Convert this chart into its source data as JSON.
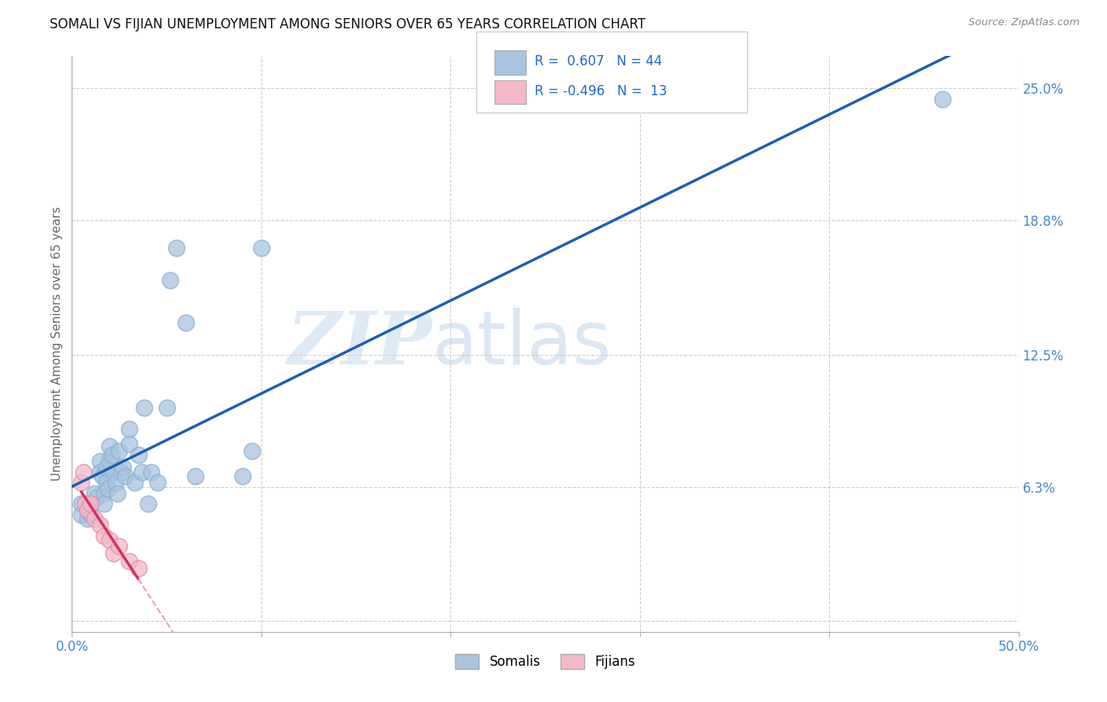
{
  "title": "SOMALI VS FIJIAN UNEMPLOYMENT AMONG SENIORS OVER 65 YEARS CORRELATION CHART",
  "source": "Source: ZipAtlas.com",
  "ylabel": "Unemployment Among Seniors over 65 years",
  "xlim": [
    0.0,
    0.5
  ],
  "ylim": [
    -0.005,
    0.265
  ],
  "xtick_positions": [
    0.0,
    0.1,
    0.2,
    0.3,
    0.4,
    0.5
  ],
  "xticklabels": [
    "0.0%",
    "",
    "",
    "",
    "",
    "50.0%"
  ],
  "ytick_positions": [
    0.0,
    0.063,
    0.125,
    0.188,
    0.25
  ],
  "yticklabels": [
    "",
    "6.3%",
    "12.5%",
    "18.8%",
    "25.0%"
  ],
  "somali_R": 0.607,
  "somali_N": 44,
  "fijian_R": -0.496,
  "fijian_N": 13,
  "somali_color": "#a8c4e0",
  "fijian_color": "#f4b8c8",
  "somali_line_color": "#1a5fb4",
  "fijian_line_solid_color": "#d63060",
  "fijian_line_dashed_color": "#e8a0b0",
  "grid_color": "#cccccc",
  "background_color": "#ffffff",
  "watermark_zip": "ZIP",
  "watermark_atlas": "atlas",
  "somali_x": [
    0.005,
    0.005,
    0.008,
    0.008,
    0.01,
    0.01,
    0.012,
    0.013,
    0.015,
    0.015,
    0.016,
    0.017,
    0.017,
    0.018,
    0.018,
    0.019,
    0.02,
    0.02,
    0.021,
    0.022,
    0.023,
    0.024,
    0.025,
    0.026,
    0.027,
    0.028,
    0.03,
    0.03,
    0.033,
    0.035,
    0.037,
    0.038,
    0.04,
    0.042,
    0.045,
    0.05,
    0.052,
    0.055,
    0.06,
    0.065,
    0.09,
    0.095,
    0.1,
    0.46
  ],
  "somali_y": [
    0.055,
    0.05,
    0.048,
    0.052,
    0.055,
    0.05,
    0.06,
    0.058,
    0.075,
    0.07,
    0.068,
    0.06,
    0.055,
    0.072,
    0.065,
    0.062,
    0.075,
    0.082,
    0.078,
    0.07,
    0.065,
    0.06,
    0.08,
    0.07,
    0.072,
    0.068,
    0.083,
    0.09,
    0.065,
    0.078,
    0.07,
    0.1,
    0.055,
    0.07,
    0.065,
    0.1,
    0.16,
    0.175,
    0.14,
    0.068,
    0.068,
    0.08,
    0.175,
    0.245
  ],
  "fijian_x": [
    0.005,
    0.006,
    0.007,
    0.008,
    0.01,
    0.012,
    0.015,
    0.017,
    0.02,
    0.022,
    0.025,
    0.03,
    0.035
  ],
  "fijian_y": [
    0.065,
    0.07,
    0.055,
    0.052,
    0.055,
    0.048,
    0.045,
    0.04,
    0.038,
    0.032,
    0.035,
    0.028,
    0.025
  ]
}
